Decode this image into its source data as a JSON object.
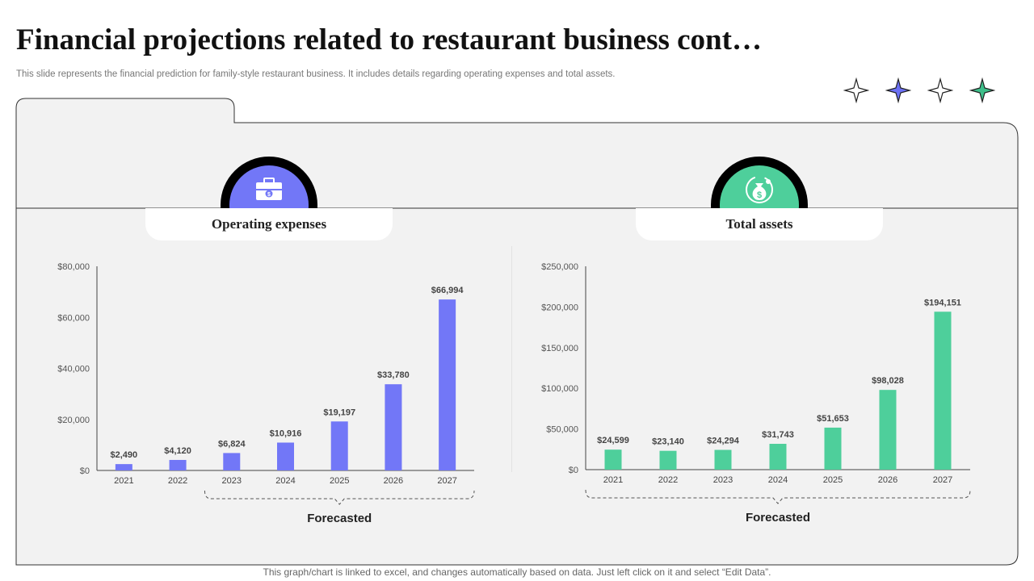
{
  "header": {
    "title": "Financial projections related to restaurant business cont…",
    "subtitle": "This slide represents the financial prediction for family-style restaurant business. It includes details regarding operating expenses and total assets."
  },
  "decor": {
    "star_colors": [
      "#ffffff",
      "#6b70f5",
      "#ffffff",
      "#3dbf8a"
    ]
  },
  "colors": {
    "operating": "#7277f7",
    "assets": "#4ecf9b",
    "panel_bg": "#f2f2f2"
  },
  "icons": {
    "operating": "briefcase-dollar-icon",
    "assets": "money-bag-growth-icon"
  },
  "chart_data": [
    {
      "type": "bar",
      "title": "Operating expenses",
      "categories": [
        "2021",
        "2022",
        "2023",
        "2024",
        "2025",
        "2026",
        "2027"
      ],
      "values": [
        2490,
        4120,
        6824,
        10916,
        19197,
        33780,
        66994
      ],
      "value_labels": [
        "$2,490",
        "$4,120",
        "$6,824",
        "$10,916",
        "$19,197",
        "$33,780",
        "$66,994"
      ],
      "ylim": [
        0,
        80000
      ],
      "yticks": [
        0,
        20000,
        40000,
        60000,
        80000
      ],
      "ytick_labels": [
        "$0",
        "$20,000",
        "$40,000",
        "$60,000",
        "$80,000"
      ],
      "forecast_label": "Forecasted",
      "forecast_range": [
        "2023",
        "2027"
      ],
      "grid": false
    },
    {
      "type": "bar",
      "title": "Total assets",
      "categories": [
        "2021",
        "2022",
        "2023",
        "2024",
        "2025",
        "2026",
        "2027"
      ],
      "values": [
        24599,
        23140,
        24294,
        31743,
        51653,
        98028,
        194151
      ],
      "value_labels": [
        "$24,599",
        "$23,140",
        "$24,294",
        "$31,743",
        "$51,653",
        "$98,028",
        "$194,151"
      ],
      "ylim": [
        0,
        250000
      ],
      "yticks": [
        0,
        50000,
        100000,
        150000,
        200000,
        250000
      ],
      "ytick_labels": [
        "$0",
        "$50,000",
        "$100,000",
        "$150,000",
        "$200,000",
        "$250,000"
      ],
      "forecast_label": "Forecasted",
      "forecast_range": [
        "2021",
        "2027"
      ],
      "grid": false
    }
  ],
  "footer": {
    "note": "This graph/chart is linked to excel, and changes automatically based on data. Just left click on it and select “Edit Data”."
  }
}
